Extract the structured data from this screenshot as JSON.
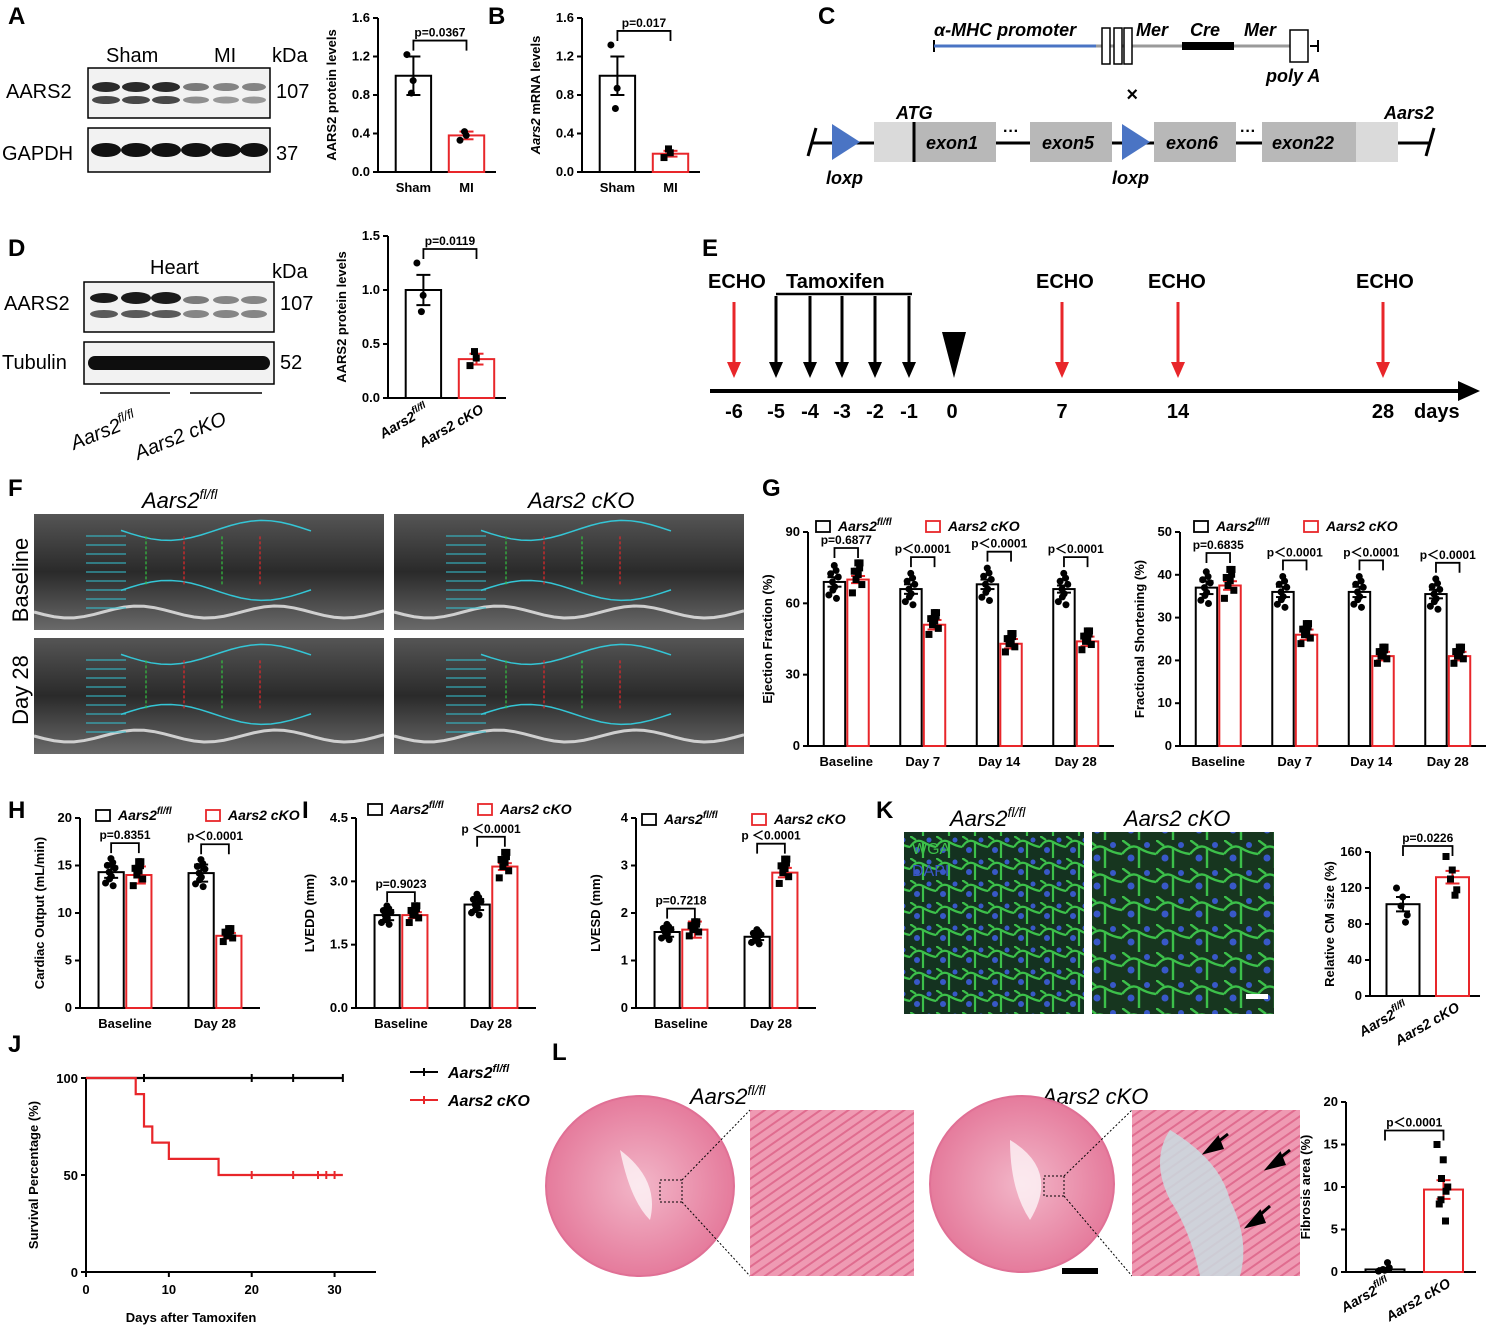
{
  "colors": {
    "sham_or_fl": "#000000",
    "treated_or_cko": "#e8262a",
    "tissue_pink": "#e98aa6",
    "echo_bg": "#3a3a3a",
    "cyan": "#34c6d6",
    "wga_green": "#34b43c",
    "dapi_blue": "#3a55c8",
    "gene_blue": "#4a74c4"
  },
  "panelA": {
    "letter": "A",
    "blot": {
      "group1": "Sham",
      "group2": "MI",
      "kda": "kDa",
      "row1": "AARS2",
      "row1_kda": "107",
      "row2": "GAPDH",
      "row2_kda": "37"
    },
    "chart": {
      "ylabel": "AARS2 protein levels",
      "pvalue": "p=0.0367"
    }
  },
  "panelB": {
    "letter": "B",
    "chart": {
      "ylabel_italic": "Aars2",
      "ylabel_rest": " mRNA levels",
      "pvalue": "p=0.017"
    }
  },
  "panelC": {
    "letter": "C",
    "promoter": "α-MHC promoter",
    "mer1": "Mer",
    "cre": "Cre",
    "mer2": "Mer",
    "polya": "poly A",
    "cross": "×",
    "atg": "ATG",
    "gene": "Aars2",
    "exon1": "exon1",
    "exon5": "exon5",
    "exon6": "exon6",
    "exon22": "exon22",
    "dots": "···",
    "loxp1": "loxp",
    "loxp2": "loxp"
  },
  "panelD": {
    "letter": "D",
    "blot": {
      "tissue": "Heart",
      "kda": "kDa",
      "row1": "AARS2",
      "row1_kda": "107",
      "row2": "Tubulin",
      "row2_kda": "52",
      "group1_main": "Aars2",
      "group1_sup": "fl/fl",
      "group2": "Aars2 cKO"
    },
    "chart": {
      "ylabel": "AARS2 protein levels",
      "pvalue": "p=0.0119",
      "cat1_main": "Aars2",
      "cat1_sup": "fl/fl",
      "cat2": "Aars2 cKO"
    }
  },
  "panelE": {
    "letter": "E",
    "echo": "ECHO",
    "tamoxifen": "Tamoxifen",
    "unit": "days",
    "timeline": [
      "-6",
      "-5",
      "-4",
      "-3",
      "-2",
      "-1",
      "0",
      "7",
      "14",
      "28"
    ]
  },
  "panelF": {
    "letter": "F",
    "col1_main": "Aars2",
    "col1_sup": "fl/fl",
    "col2": "Aars2 cKO",
    "row1": "Baseline",
    "row2": "Day 28"
  },
  "panelG": {
    "letter": "G",
    "legend": {
      "s1_main": "Aars2",
      "s1_sup": "fl/fl",
      "s2": "Aars2 cKO"
    },
    "categories": [
      "Baseline",
      "Day 7",
      "Day 14",
      "Day 28"
    ],
    "ef": {
      "ylabel": "Ejection Fraction (%)",
      "pvalues": [
        "p=0.6877",
        "p＜0.0001",
        "p＜0.0001",
        "p＜0.0001"
      ]
    },
    "fs": {
      "ylabel": "Fractional Shortening (%)",
      "pvalues": [
        "p=0.6835",
        "p＜0.0001",
        "p＜0.0001",
        "p＜0.0001"
      ]
    }
  },
  "panelH": {
    "letter": "H",
    "ylabel": "Cardiac Output (mL/min)",
    "categories": [
      "Baseline",
      "Day 28"
    ],
    "pvalues": [
      "p=0.8351",
      "p＜0.0001"
    ],
    "legend": {
      "s1_main": "Aars2",
      "s1_sup": "fl/fl",
      "s2": "Aars2 cKO"
    }
  },
  "panelI": {
    "letter": "I",
    "lvedd": {
      "ylabel": "LVEDD (mm)",
      "pvalues": [
        "p=0.9023",
        "p ＜0.0001"
      ]
    },
    "lvesd": {
      "ylabel": "LVESD (mm)",
      "pvalues": [
        "p=0.7218",
        "p ＜0.0001"
      ]
    },
    "categories": [
      "Baseline",
      "Day 28"
    ],
    "legend": {
      "s1_main": "Aars2",
      "s1_sup": "fl/fl",
      "s2": "Aars2 cKO"
    }
  },
  "panelK": {
    "letter": "K",
    "col1_main": "Aars2",
    "col1_sup": "fl/fl",
    "col2": "Aars2 cKO",
    "wga": "WGA",
    "dapi": "DAPI",
    "ylabel": "Relative CM size (%)",
    "pvalue": "p=0.0226",
    "cat1_main": "Aars2",
    "cat1_sup": "fl/fl",
    "cat2": "Aars2 cKO"
  },
  "panelJ": {
    "letter": "J",
    "ylabel": "Survival Percentage (%)",
    "xlabel": "Days after Tamoxifen",
    "legend": {
      "s1_main": "Aars2",
      "s1_sup": "fl/fl",
      "s2": "Aars2 cKO"
    }
  },
  "panelL": {
    "letter": "L",
    "col1_main": "Aars2",
    "col1_sup": "fl/fl",
    "col2": "Aars2 cKO",
    "ylabel": "Fibrosis area (%)",
    "pvalue": "p＜0.0001",
    "cat1_main": "Aars2",
    "cat1_sup": "fl/fl",
    "cat2": "Aars2 cKO"
  },
  "chart_data": [
    {
      "type": "bar",
      "panel": "A",
      "categories": [
        "Sham",
        "MI"
      ],
      "values": [
        1.0,
        0.38
      ],
      "errors": [
        0.2,
        0.04
      ],
      "points": [
        [
          1.22,
          0.95,
          0.82
        ],
        [
          0.33,
          0.38,
          0.42
        ]
      ],
      "ylabel": "AARS2 protein levels",
      "ylim": [
        0,
        1.6
      ],
      "yticks": [
        0.0,
        0.4,
        0.8,
        1.2,
        1.6
      ]
    },
    {
      "type": "bar",
      "panel": "B",
      "categories": [
        "Sham",
        "MI"
      ],
      "values": [
        1.0,
        0.19
      ],
      "errors": [
        0.2,
        0.03
      ],
      "points": [
        [
          1.32,
          0.87,
          0.66
        ],
        [
          0.15,
          0.2,
          0.24
        ]
      ],
      "ylabel": "Aars2 mRNA levels",
      "ylim": [
        0,
        1.6
      ],
      "yticks": [
        0.0,
        0.4,
        0.8,
        1.2,
        1.6
      ]
    },
    {
      "type": "bar",
      "panel": "D",
      "categories": [
        "Aars2 fl/fl",
        "Aars2 cKO"
      ],
      "values": [
        1.0,
        0.36
      ],
      "errors": [
        0.14,
        0.05
      ],
      "points": [
        [
          1.25,
          0.95,
          0.8
        ],
        [
          0.3,
          0.37,
          0.43
        ]
      ],
      "ylabel": "AARS2 protein levels",
      "ylim": [
        0,
        1.5
      ],
      "yticks": [
        0.0,
        0.5,
        1.0,
        1.5
      ]
    },
    {
      "type": "bar",
      "panel": "G-EF",
      "categories": [
        "Baseline",
        "Day 7",
        "Day 14",
        "Day 28"
      ],
      "series": [
        {
          "name": "Aars2 fl/fl",
          "values": [
            69,
            66,
            68,
            66
          ],
          "errors": [
            2,
            2,
            2,
            1.5
          ]
        },
        {
          "name": "Aars2 cKO",
          "values": [
            70,
            51,
            43,
            44
          ],
          "errors": [
            1.5,
            2,
            2,
            2
          ]
        }
      ],
      "ylabel": "Ejection Fraction (%)",
      "ylim": [
        0,
        90
      ],
      "yticks": [
        0,
        30,
        60,
        90
      ]
    },
    {
      "type": "bar",
      "panel": "G-FS",
      "categories": [
        "Baseline",
        "Day 7",
        "Day 14",
        "Day 28"
      ],
      "series": [
        {
          "name": "Aars2 fl/fl",
          "values": [
            37,
            36,
            36,
            35.5
          ],
          "errors": [
            1.5,
            1.2,
            1.2,
            1
          ]
        },
        {
          "name": "Aars2 cKO",
          "values": [
            37.5,
            26,
            21,
            21
          ],
          "errors": [
            1,
            1.2,
            1,
            1
          ]
        }
      ],
      "ylabel": "Fractional Shortening (%)",
      "ylim": [
        0,
        50
      ],
      "yticks": [
        0,
        10,
        20,
        30,
        40,
        50
      ]
    },
    {
      "type": "bar",
      "panel": "H",
      "categories": [
        "Baseline",
        "Day 28"
      ],
      "series": [
        {
          "name": "Aars2 fl/fl",
          "values": [
            14.3,
            14.2
          ],
          "errors": [
            0.6,
            0.9
          ]
        },
        {
          "name": "Aars2 cKO",
          "values": [
            14.0,
            7.6
          ],
          "errors": [
            0.9,
            0.3
          ]
        }
      ],
      "ylabel": "Cardiac Output (mL/min)",
      "ylim": [
        0,
        20
      ],
      "yticks": [
        0,
        5,
        10,
        15,
        20
      ]
    },
    {
      "type": "bar",
      "panel": "I-LVEDD",
      "categories": [
        "Baseline",
        "Day 28"
      ],
      "series": [
        {
          "name": "Aars2 fl/fl",
          "values": [
            2.2,
            2.45
          ],
          "errors": [
            0.12,
            0.13
          ]
        },
        {
          "name": "Aars2 cKO",
          "values": [
            2.2,
            3.35
          ],
          "errors": [
            0.07,
            0.08
          ]
        }
      ],
      "ylabel": "LVEDD (mm)",
      "ylim": [
        0,
        4.5
      ],
      "yticks": [
        0.0,
        1.5,
        3.0,
        4.5
      ]
    },
    {
      "type": "bar",
      "panel": "I-LVESD",
      "categories": [
        "Baseline",
        "Day 28"
      ],
      "series": [
        {
          "name": "Aars2 fl/fl",
          "values": [
            1.6,
            1.5
          ],
          "errors": [
            0.1,
            0.07
          ]
        },
        {
          "name": "Aars2 cKO",
          "values": [
            1.65,
            2.85
          ],
          "errors": [
            0.17,
            0.1
          ]
        }
      ],
      "ylabel": "LVESD (mm)",
      "ylim": [
        0,
        4
      ],
      "yticks": [
        0,
        1,
        2,
        3,
        4
      ]
    },
    {
      "type": "bar",
      "panel": "K",
      "categories": [
        "Aars2 fl/fl",
        "Aars2 cKO"
      ],
      "values": [
        102,
        132
      ],
      "errors": [
        8,
        7
      ],
      "points": [
        [
          120,
          110,
          100,
          90,
          82
        ],
        [
          155,
          140,
          130,
          118,
          112
        ]
      ],
      "ylabel": "Relative CM size (%)",
      "ylim": [
        0,
        160
      ],
      "yticks": [
        0,
        40,
        80,
        120,
        160
      ]
    },
    {
      "type": "line",
      "panel": "J",
      "xlabel": "Days after Tamoxifen",
      "ylabel": "Survival Percentage (%)",
      "xlim": [
        0,
        35
      ],
      "ylim": [
        0,
        100
      ],
      "xticks": [
        0,
        10,
        20,
        30
      ],
      "yticks": [
        0,
        50,
        100
      ],
      "series": [
        {
          "name": "Aars2 fl/fl",
          "x": [
            0,
            31
          ],
          "y": [
            100,
            100
          ],
          "censor": [
            7,
            20,
            25,
            31
          ]
        },
        {
          "name": "Aars2 cKO",
          "x": [
            0,
            6,
            7,
            8,
            10,
            16,
            31
          ],
          "y": [
            100,
            91.7,
            75,
            66.7,
            58.3,
            50,
            50
          ],
          "censor": [
            20,
            25,
            28,
            29,
            30
          ]
        }
      ]
    },
    {
      "type": "bar",
      "panel": "L",
      "categories": [
        "Aars2 fl/fl",
        "Aars2 cKO"
      ],
      "values": [
        0.3,
        9.7
      ],
      "errors": [
        0.15,
        1.1
      ],
      "points": [
        [
          0.1,
          0.2,
          0.3,
          0.5,
          1.1
        ],
        [
          15,
          13.2,
          11,
          10,
          9.5,
          8.5,
          8,
          6
        ]
      ],
      "ylabel": "Fibrosis area (%)",
      "ylim": [
        0,
        20
      ],
      "yticks": [
        0,
        5,
        10,
        15,
        20
      ]
    }
  ]
}
